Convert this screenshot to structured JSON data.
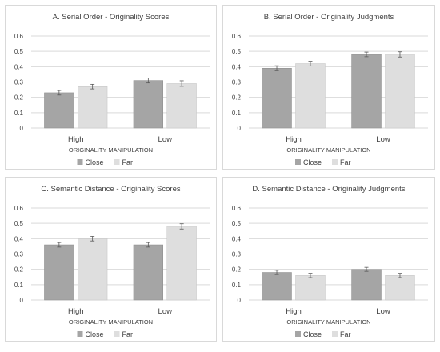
{
  "chart_data": [
    {
      "type": "bar",
      "title": "A. Serial Order - Originality Scores",
      "xlabel": "ORIGINALITY MANIPULATION",
      "ylabel": "",
      "categories": [
        "High",
        "Low"
      ],
      "series": [
        {
          "name": "Close",
          "values": [
            0.23,
            0.31
          ],
          "errors": [
            0.015,
            0.016
          ]
        },
        {
          "name": "Far",
          "values": [
            0.27,
            0.29
          ],
          "errors": [
            0.015,
            0.018
          ]
        }
      ],
      "ylim": [
        0,
        0.6
      ],
      "yticks": [
        "0",
        "0.1",
        "0.2",
        "0.3",
        "0.4",
        "0.5",
        "0.6"
      ],
      "grid": true,
      "legend": "bottom"
    },
    {
      "type": "bar",
      "title": "B. Serial Order - Originality Judgments",
      "xlabel": "ORIGINALITY MANIPULATION",
      "ylabel": "",
      "categories": [
        "High",
        "Low"
      ],
      "series": [
        {
          "name": "Close",
          "values": [
            0.39,
            0.48
          ],
          "errors": [
            0.016,
            0.015
          ]
        },
        {
          "name": "Far",
          "values": [
            0.42,
            0.48
          ],
          "errors": [
            0.015,
            0.017
          ]
        }
      ],
      "ylim": [
        0,
        0.6
      ],
      "yticks": [
        "0",
        "0.1",
        "0.2",
        "0.3",
        "0.4",
        "0.5",
        "0.6"
      ],
      "grid": true,
      "legend": "bottom"
    },
    {
      "type": "bar",
      "title": "C. Semantic Distance - Originality Scores",
      "xlabel": "ORIGINALITY MANIPULATION",
      "ylabel": "",
      "categories": [
        "High",
        "Low"
      ],
      "series": [
        {
          "name": "Close",
          "values": [
            0.36,
            0.36
          ],
          "errors": [
            0.015,
            0.015
          ]
        },
        {
          "name": "Far",
          "values": [
            0.4,
            0.48
          ],
          "errors": [
            0.015,
            0.017
          ]
        }
      ],
      "ylim": [
        0,
        0.6
      ],
      "yticks": [
        "0",
        "0.1",
        "0.2",
        "0.3",
        "0.4",
        "0.5",
        "0.6"
      ],
      "grid": true,
      "legend": "bottom"
    },
    {
      "type": "bar",
      "title": "D. Semantic Distance - Originality Judgments",
      "xlabel": "ORIGINALITY MANIPULATION",
      "ylabel": "",
      "categories": [
        "High",
        "Low"
      ],
      "series": [
        {
          "name": "Close",
          "values": [
            0.18,
            0.2
          ],
          "errors": [
            0.014,
            0.013
          ]
        },
        {
          "name": "Far",
          "values": [
            0.16,
            0.16
          ],
          "errors": [
            0.014,
            0.014
          ]
        }
      ],
      "ylim": [
        0,
        0.6
      ],
      "yticks": [
        "0",
        "0.1",
        "0.2",
        "0.3",
        "0.4",
        "0.5",
        "0.6"
      ],
      "grid": true,
      "legend": "bottom"
    }
  ],
  "colors": {
    "close": "#a5a5a5",
    "far": "#dedede",
    "grid": "#d9d9d9",
    "border": "#d9d9d9",
    "text": "#404040"
  }
}
